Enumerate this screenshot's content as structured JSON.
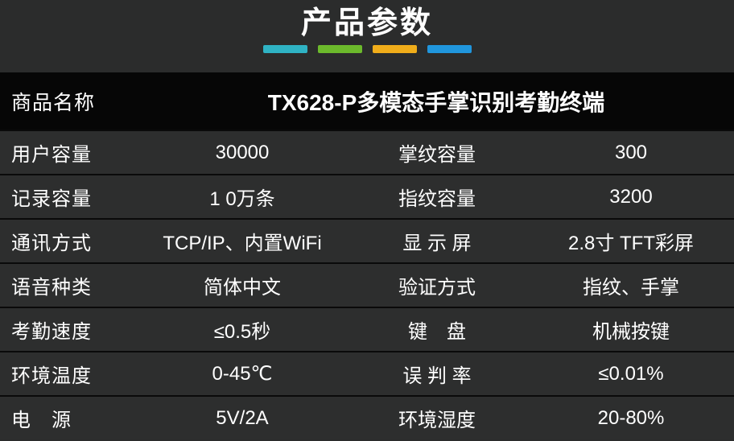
{
  "header": {
    "title": "产品参数",
    "accent_colors": [
      "#2fb3c4",
      "#6cba2c",
      "#f0ad1a",
      "#2096dd"
    ]
  },
  "table": {
    "product_row": {
      "label": "商品名称",
      "value": "TX628-P多模态手掌识别考勤终端"
    },
    "rows": [
      {
        "c1": "用户容量",
        "c2": "30000",
        "c3": "掌纹容量",
        "c4": "300"
      },
      {
        "c1": "记录容量",
        "c2": "1 0万条",
        "c3": "指纹容量",
        "c4": "3200"
      },
      {
        "c1": "通讯方式",
        "c2": "TCP/IP、内置WiFi",
        "c3": "显 示 屏",
        "c4": "2.8寸 TFT彩屏"
      },
      {
        "c1": "语音种类",
        "c2": "简体中文",
        "c3": "验证方式",
        "c4": "指纹、手掌"
      },
      {
        "c1": "考勤速度",
        "c2": "≤0.5秒",
        "c3": "键　盘",
        "c4": "机械按键"
      },
      {
        "c1": "环境温度",
        "c2": "0-45℃",
        "c3": "误 判 率",
        "c4": "≤0.01%"
      },
      {
        "c1": "电　源",
        "c2": "5V/2A",
        "c3": "环境湿度",
        "c4": "20-80%"
      }
    ]
  }
}
